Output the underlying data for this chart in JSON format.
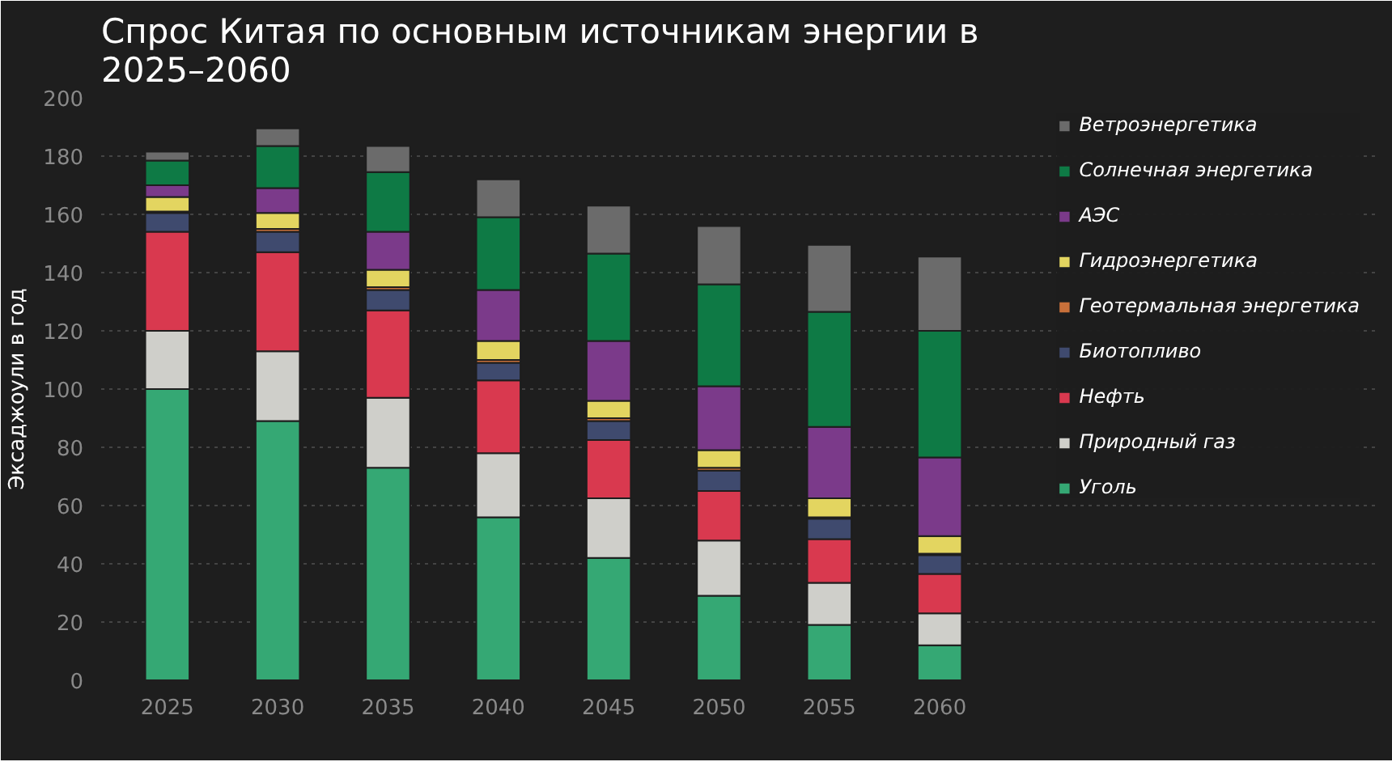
{
  "chart_data": {
    "type": "bar",
    "stacked": true,
    "title": "Спрос Китая по основным источникам энергии в 2025–2060",
    "ylabel": "Эксаджоули в год",
    "categories": [
      "2025",
      "2030",
      "2035",
      "2040",
      "2045",
      "2050",
      "2055",
      "2060"
    ],
    "series": [
      {
        "name": "Уголь",
        "color": "#35a874",
        "values": [
          100,
          89,
          73,
          56,
          42,
          29,
          19,
          12
        ]
      },
      {
        "name": "Природный газ",
        "color": "#cfcfca",
        "values": [
          20,
          24,
          24,
          22,
          20.5,
          19,
          14.5,
          11
        ]
      },
      {
        "name": "Нефть",
        "color": "#d9394f",
        "values": [
          34,
          34,
          30,
          25,
          20,
          17,
          15,
          13.5
        ]
      },
      {
        "name": "Биотопливо",
        "color": "#3f4a6e",
        "values": [
          6.5,
          7,
          7,
          6,
          6.5,
          7,
          7,
          6.5
        ]
      },
      {
        "name": "Геотермальная энергетика",
        "color": "#c8703a",
        "values": [
          0.5,
          1,
          1,
          1,
          1,
          1,
          0.5,
          0.5
        ]
      },
      {
        "name": "Гидроэнергетика",
        "color": "#e3d560",
        "values": [
          5,
          5.5,
          6,
          6.5,
          6,
          6,
          6.5,
          6
        ]
      },
      {
        "name": "АЭС",
        "color": "#7b3a8a",
        "values": [
          4,
          8.5,
          13,
          17.5,
          20.5,
          22,
          24.5,
          27
        ]
      },
      {
        "name": "Солнечная энергетика",
        "color": "#0e7a45",
        "values": [
          8.5,
          14.5,
          20.5,
          25,
          30,
          35,
          39.5,
          43.5
        ]
      },
      {
        "name": "Ветроэнергетика",
        "color": "#6b6b6b",
        "values": [
          3,
          6,
          9,
          13,
          16.5,
          20,
          23,
          25.5
        ]
      }
    ],
    "ylim": [
      0,
      200
    ],
    "yticks": [
      0,
      20,
      40,
      60,
      80,
      100,
      120,
      140,
      160,
      180,
      200
    ],
    "grid": "y",
    "legend": "right"
  }
}
